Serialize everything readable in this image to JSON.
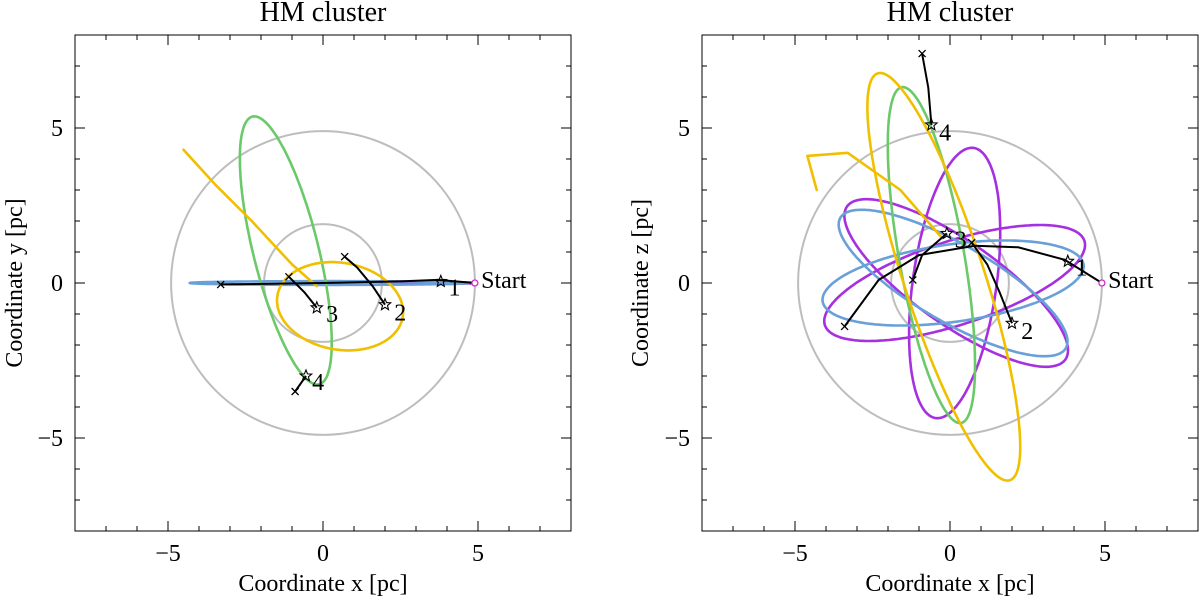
{
  "colors": {
    "purple": "#a630e0",
    "blue": "#6aa0d8",
    "green": "#6cc96a",
    "yellow": "#f0c000",
    "ring": "#bdbdbd",
    "track": "#000000",
    "start": "#d22ad2"
  },
  "chart_data": [
    {
      "type": "line",
      "title": "HM cluster",
      "xlabel": "Coordinate x [pc]",
      "ylabel": "Coordinate y [pc]",
      "xlim": [
        -8,
        8
      ],
      "ylim": [
        -8,
        8
      ],
      "xticks": [
        -5,
        0,
        5
      ],
      "yticks": [
        -5,
        0,
        5
      ],
      "tick_labels": [
        "−5",
        "0",
        "5"
      ],
      "grid": false,
      "reference_circles": [
        {
          "cx": 0,
          "cy": 0,
          "r": 4.9
        },
        {
          "cx": 0,
          "cy": 0,
          "r": 1.9
        }
      ],
      "orbits": [
        {
          "color": "purple",
          "cx": 0.15,
          "cy": 0.0,
          "a": 4.75,
          "b": 0.05,
          "angle": 0,
          "t0": -1.5708,
          "t1": 1.5708
        },
        {
          "color": "blue",
          "cx": 0.2,
          "cy": 0.0,
          "a": 4.5,
          "b": 0.06,
          "angle": 0,
          "t0": 0,
          "t1": 6.2832
        },
        {
          "color": "green",
          "cx": -1.2,
          "cy": 1.05,
          "a": 4.45,
          "b": 1.05,
          "angle": 104,
          "t0": 0,
          "t1": 6.2832
        },
        {
          "color": "yellow",
          "cx": 0.55,
          "cy": -0.75,
          "a": 2.05,
          "b": 1.4,
          "angle": -10,
          "t0": 0,
          "t1": 6.2832
        },
        {
          "color": "yellow",
          "points": [
            [
              -4.5,
              4.3
            ],
            [
              -3.5,
              3.2
            ],
            [
              -2.3,
              2.0
            ],
            [
              -1.0,
              0.6
            ],
            [
              -0.2,
              -0.1
            ]
          ]
        }
      ],
      "tracks": [
        {
          "points": [
            [
              4.9,
              0
            ],
            [
              3.7,
              0.1
            ],
            [
              2.5,
              0.05
            ],
            [
              0,
              0.0
            ],
            [
              -3.3,
              -0.05
            ]
          ]
        },
        {
          "points": [
            [
              0.7,
              0.85
            ],
            [
              1.1,
              0.5
            ],
            [
              1.6,
              -0.1
            ],
            [
              2.0,
              -0.7
            ]
          ]
        },
        {
          "points": [
            [
              -1.1,
              0.2
            ],
            [
              -0.6,
              -0.3
            ],
            [
              -0.2,
              -0.8
            ]
          ]
        },
        {
          "points": [
            [
              -0.9,
              -3.5
            ],
            [
              -0.55,
              -3.0
            ]
          ]
        }
      ],
      "x_markers": [
        [
          -3.3,
          -0.05
        ],
        [
          0.7,
          0.85
        ],
        [
          -1.1,
          0.2
        ],
        [
          -0.9,
          -3.5
        ]
      ],
      "star_markers": [
        [
          3.8,
          0.05
        ],
        [
          2.0,
          -0.7
        ],
        [
          -0.2,
          -0.8
        ],
        [
          -0.55,
          -3.0
        ]
      ],
      "start_marker": [
        4.9,
        0
      ],
      "annotations": [
        {
          "text": "1",
          "x": 4.05,
          "y": -0.15
        },
        {
          "text": "2",
          "x": 2.3,
          "y": -0.95
        },
        {
          "text": "3",
          "x": 0.1,
          "y": -1.0
        },
        {
          "text": "4",
          "x": -0.35,
          "y": -3.2
        },
        {
          "text": "Start",
          "x": 5.1,
          "y": 0.1
        }
      ]
    },
    {
      "type": "line",
      "title": "HM cluster",
      "xlabel": "Coordinate x [pc]",
      "ylabel": "Coordinate z [pc]",
      "xlim": [
        -8,
        8
      ],
      "ylim": [
        -8,
        8
      ],
      "xticks": [
        -5,
        0,
        5
      ],
      "yticks": [
        -5,
        0,
        5
      ],
      "tick_labels": [
        "−5",
        "0",
        "5"
      ],
      "grid": false,
      "reference_circles": [
        {
          "cx": 0,
          "cy": 0,
          "r": 4.9
        },
        {
          "cx": 0,
          "cy": 0,
          "r": 1.9
        }
      ],
      "orbits": [
        {
          "color": "purple",
          "cx": 0.15,
          "cy": 0.0,
          "a": 4.4,
          "b": 1.35,
          "angle": 18,
          "t0": 0,
          "t1": 6.2832
        },
        {
          "color": "purple",
          "cx": 0.15,
          "cy": 0.0,
          "a": 4.4,
          "b": 1.35,
          "angle": 82,
          "t0": 0,
          "t1": 6.2832
        },
        {
          "color": "purple",
          "cx": 0.2,
          "cy": 0.0,
          "a": 4.3,
          "b": 1.35,
          "angle": -35,
          "t0": 0,
          "t1": 6.2832
        },
        {
          "color": "blue",
          "cx": 0.1,
          "cy": 0.0,
          "a": 4.25,
          "b": 1.25,
          "angle": 8,
          "t0": 0,
          "t1": 6.2832
        },
        {
          "color": "blue",
          "cx": 0.1,
          "cy": 0.0,
          "a": 4.2,
          "b": 1.25,
          "angle": -30,
          "t0": 0,
          "t1": 6.2832
        },
        {
          "color": "green",
          "cx": -0.6,
          "cy": 0.9,
          "a": 5.5,
          "b": 1.05,
          "angle": 100,
          "t0": 0,
          "t1": 6.2832
        },
        {
          "color": "yellow",
          "cx": -0.2,
          "cy": 0.2,
          "a": 6.9,
          "b": 1.3,
          "angle": -72,
          "t0": 0,
          "t1": 6.2832
        },
        {
          "color": "yellow",
          "points": [
            [
              -4.3,
              3.0
            ],
            [
              -4.6,
              4.1
            ],
            [
              -3.3,
              4.2
            ],
            [
              -1.6,
              3.0
            ],
            [
              -0.3,
              1.5
            ]
          ]
        }
      ],
      "tracks": [
        {
          "points": [
            [
              4.9,
              0
            ],
            [
              3.7,
              0.75
            ],
            [
              2.2,
              1.15
            ],
            [
              0.8,
              1.2
            ],
            [
              -1.0,
              0.9
            ],
            [
              -2.3,
              0.1
            ],
            [
              -3.4,
              -1.4
            ]
          ]
        },
        {
          "points": [
            [
              0.7,
              1.3
            ],
            [
              1.2,
              0.6
            ],
            [
              1.6,
              -0.3
            ],
            [
              2.0,
              -1.3
            ]
          ]
        },
        {
          "points": [
            [
              -1.2,
              0.1
            ],
            [
              -0.9,
              0.9
            ],
            [
              -0.1,
              1.6
            ]
          ]
        },
        {
          "points": [
            [
              -0.9,
              7.4
            ],
            [
              -0.7,
              6.3
            ],
            [
              -0.6,
              5.1
            ]
          ]
        }
      ],
      "x_markers": [
        [
          -3.4,
          -1.4
        ],
        [
          0.7,
          1.3
        ],
        [
          -1.2,
          0.1
        ],
        [
          -0.9,
          7.4
        ]
      ],
      "star_markers": [
        [
          3.8,
          0.7
        ],
        [
          2.0,
          -1.3
        ],
        [
          -0.1,
          1.6
        ],
        [
          -0.6,
          5.1
        ]
      ],
      "start_marker": [
        4.9,
        0
      ],
      "annotations": [
        {
          "text": "1",
          "x": 4.05,
          "y": 0.5
        },
        {
          "text": "2",
          "x": 2.3,
          "y": -1.55
        },
        {
          "text": "3",
          "x": 0.15,
          "y": 1.4
        },
        {
          "text": "4",
          "x": -0.35,
          "y": 4.85
        },
        {
          "text": "Start",
          "x": 5.1,
          "y": 0.1
        }
      ]
    }
  ]
}
